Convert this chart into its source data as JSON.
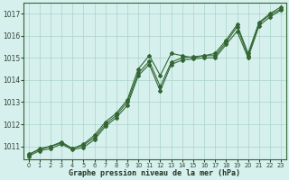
{
  "xlabel": "Graphe pression niveau de la mer (hPa)",
  "bg_color": "#d6f0ee",
  "line_color": "#336633",
  "ylim": [
    1010.4,
    1017.5
  ],
  "xlim": [
    -0.5,
    23.5
  ],
  "yticks": [
    1011,
    1012,
    1013,
    1014,
    1015,
    1016,
    1017
  ],
  "xticks": [
    0,
    1,
    2,
    3,
    4,
    5,
    6,
    7,
    8,
    9,
    10,
    11,
    12,
    13,
    14,
    15,
    16,
    17,
    18,
    19,
    20,
    21,
    22,
    23
  ],
  "line1": [
    1010.6,
    1010.9,
    1011.0,
    1011.2,
    1010.9,
    1011.1,
    1011.5,
    1012.1,
    1012.5,
    1013.1,
    1014.5,
    1015.1,
    1014.2,
    1015.2,
    1015.1,
    1015.0,
    1015.1,
    1015.2,
    1015.8,
    1016.5,
    1015.2,
    1016.6,
    1017.0,
    1017.3
  ],
  "line2": [
    1010.65,
    1010.85,
    1011.0,
    1011.15,
    1010.9,
    1011.05,
    1011.4,
    1012.0,
    1012.4,
    1013.0,
    1014.3,
    1014.85,
    1013.7,
    1014.8,
    1015.0,
    1015.05,
    1015.1,
    1015.1,
    1015.7,
    1016.4,
    1015.1,
    1016.55,
    1016.95,
    1017.2
  ],
  "line3": [
    1010.55,
    1010.8,
    1010.9,
    1011.1,
    1010.85,
    1010.95,
    1011.3,
    1011.9,
    1012.3,
    1012.85,
    1014.2,
    1014.7,
    1013.5,
    1014.7,
    1014.9,
    1014.95,
    1015.0,
    1015.0,
    1015.6,
    1016.2,
    1015.0,
    1016.45,
    1016.85,
    1017.15
  ]
}
